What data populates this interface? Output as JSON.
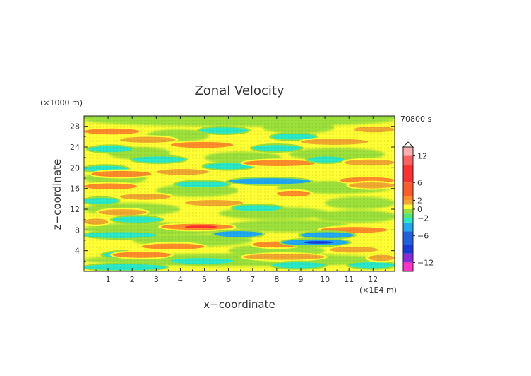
{
  "chart_data": {
    "type": "heatmap",
    "title": "Zonal Velocity",
    "xlabel": "x−coordinate",
    "ylabel": "z−coordinate",
    "x_unit": "(×1E4 m)",
    "y_unit": "(×1000 m)",
    "time_label": "70800 s",
    "xlim": [
      0,
      12.9
    ],
    "ylim": [
      0,
      30
    ],
    "x_ticks": [
      "1",
      "2",
      "3",
      "4",
      "5",
      "6",
      "7",
      "8",
      "9",
      "10",
      "11",
      "12"
    ],
    "y_ticks": [
      "4",
      "8",
      "12",
      "16",
      "20",
      "24",
      "28"
    ],
    "colorbar": {
      "range": [
        -14,
        14
      ],
      "tick_labels": [
        "12",
        "6",
        "2",
        "0",
        "−2",
        "−6",
        "−12"
      ],
      "tick_values": [
        12,
        6,
        2,
        0,
        -2,
        -6,
        -12
      ],
      "colors": {
        "extreme_pos": "#ffb0b0",
        "strong_pos": "#ff3030",
        "mod_pos": "#ff8c2a",
        "weak_pos": "#f0a830",
        "near_zero_pos": "#ffff33",
        "near_zero_neg": "#9be03a",
        "weak_neg": "#28e8c8",
        "mod_neg": "#20a8f0",
        "strong_neg": "#1838d8",
        "extreme_neg": "#8a2ad8",
        "min_neg": "#ff33cc"
      }
    },
    "field_bands": [
      {
        "x0": 0.0,
        "x1": 2.3,
        "z": 27.0,
        "value": 3.5
      },
      {
        "x0": 1.5,
        "x1": 3.8,
        "z": 25.4,
        "value": 3.0
      },
      {
        "x0": 0.2,
        "x1": 2.0,
        "z": 23.6,
        "value": -2.5
      },
      {
        "x0": 3.6,
        "x1": 6.2,
        "z": 24.4,
        "value": 3.5
      },
      {
        "x0": 4.8,
        "x1": 6.8,
        "z": 27.2,
        "value": -2.5
      },
      {
        "x0": 7.8,
        "x1": 9.6,
        "z": 26.0,
        "value": -3.0
      },
      {
        "x0": 9.0,
        "x1": 11.8,
        "z": 25.0,
        "value": 3.0
      },
      {
        "x0": 7.0,
        "x1": 9.0,
        "z": 23.8,
        "value": -2.5
      },
      {
        "x0": 11.2,
        "x1": 12.9,
        "z": 27.4,
        "value": 3.0
      },
      {
        "x0": 0.0,
        "x1": 1.8,
        "z": 19.8,
        "value": -3.0
      },
      {
        "x0": 0.3,
        "x1": 2.8,
        "z": 18.8,
        "value": 3.5
      },
      {
        "x0": 3.0,
        "x1": 5.2,
        "z": 19.2,
        "value": 3.0
      },
      {
        "x0": 5.0,
        "x1": 7.0,
        "z": 20.3,
        "value": -2.5
      },
      {
        "x0": 6.6,
        "x1": 9.6,
        "z": 20.9,
        "value": 3.5
      },
      {
        "x0": 9.3,
        "x1": 10.8,
        "z": 21.6,
        "value": -2.5
      },
      {
        "x0": 10.8,
        "x1": 12.9,
        "z": 21.0,
        "value": 3.0
      },
      {
        "x0": 2.0,
        "x1": 4.2,
        "z": 21.6,
        "value": -2.0
      },
      {
        "x0": 0.0,
        "x1": 2.2,
        "z": 16.4,
        "value": 3.5
      },
      {
        "x0": 3.8,
        "x1": 6.0,
        "z": 16.8,
        "value": -3.0
      },
      {
        "x0": 6.0,
        "x1": 9.4,
        "z": 17.4,
        "value": -3.5
      },
      {
        "x0": 8.0,
        "x1": 9.4,
        "z": 15.0,
        "value": 3.5
      },
      {
        "x0": 10.6,
        "x1": 12.9,
        "z": 17.6,
        "value": 3.5
      },
      {
        "x0": 11.0,
        "x1": 12.9,
        "z": 16.6,
        "value": 2.5
      },
      {
        "x0": 1.5,
        "x1": 3.6,
        "z": 14.4,
        "value": 3.0
      },
      {
        "x0": 0.0,
        "x1": 1.4,
        "z": 13.6,
        "value": -2.5
      },
      {
        "x0": 4.2,
        "x1": 6.6,
        "z": 13.2,
        "value": 3.0
      },
      {
        "x0": 6.2,
        "x1": 8.2,
        "z": 12.2,
        "value": -2.0
      },
      {
        "x0": 0.6,
        "x1": 2.6,
        "z": 11.4,
        "value": 3.0
      },
      {
        "x0": 0.0,
        "x1": 1.0,
        "z": 9.6,
        "value": 3.0
      },
      {
        "x0": 1.2,
        "x1": 3.2,
        "z": 10.0,
        "value": -2.5
      },
      {
        "x0": 3.2,
        "x1": 6.2,
        "z": 8.6,
        "value": 4.0
      },
      {
        "x0": 5.4,
        "x1": 7.4,
        "z": 7.2,
        "value": -3.5
      },
      {
        "x0": 0.0,
        "x1": 3.0,
        "z": 7.0,
        "value": -2.5
      },
      {
        "x0": 9.8,
        "x1": 12.6,
        "z": 8.0,
        "value": 3.5
      },
      {
        "x0": 9.0,
        "x1": 11.2,
        "z": 7.0,
        "value": -3.5
      },
      {
        "x0": 7.0,
        "x1": 9.0,
        "z": 5.2,
        "value": 3.5
      },
      {
        "x0": 8.2,
        "x1": 11.0,
        "z": 5.6,
        "value": -4.5
      },
      {
        "x0": 10.2,
        "x1": 12.2,
        "z": 4.2,
        "value": 3.0
      },
      {
        "x0": 2.4,
        "x1": 5.0,
        "z": 4.8,
        "value": 3.5
      },
      {
        "x0": 0.8,
        "x1": 2.4,
        "z": 3.2,
        "value": -2.5
      },
      {
        "x0": 1.2,
        "x1": 3.6,
        "z": 3.2,
        "value": 3.5
      },
      {
        "x0": 3.6,
        "x1": 6.2,
        "z": 2.0,
        "value": -3.0
      },
      {
        "x0": 6.6,
        "x1": 10.0,
        "z": 2.8,
        "value": 3.0
      },
      {
        "x0": 7.8,
        "x1": 10.0,
        "z": 1.2,
        "value": -2.5
      },
      {
        "x0": 0.0,
        "x1": 3.4,
        "z": 0.8,
        "value": -3.0
      },
      {
        "x0": 11.0,
        "x1": 12.9,
        "z": 1.2,
        "value": -2.5
      },
      {
        "x0": 11.8,
        "x1": 12.9,
        "z": 2.6,
        "value": 2.5
      }
    ]
  }
}
